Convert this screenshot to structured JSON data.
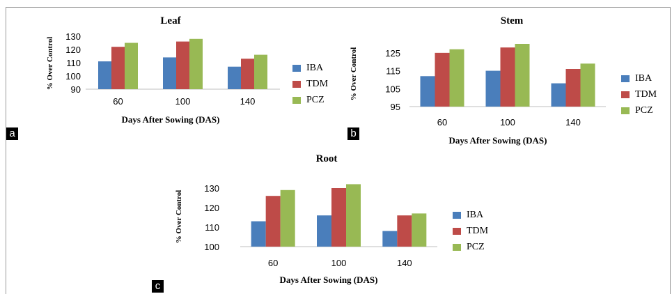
{
  "chart_data": [
    {
      "type": "bar",
      "title": "Leaf",
      "xlabel": "Days After Sowing (DAS)",
      "ylabel": "% Over Control",
      "categories": [
        "60",
        "100",
        "140"
      ],
      "ylim": [
        90,
        130
      ],
      "yticks": [
        90,
        100,
        110,
        120,
        130
      ],
      "legend_position": "right",
      "panel_label": "a",
      "series": [
        {
          "name": "IBA",
          "color": "#4a7ebb",
          "values": [
            111,
            114,
            107
          ]
        },
        {
          "name": "TDM",
          "color": "#be4b48",
          "values": [
            122,
            126,
            113
          ]
        },
        {
          "name": "PCZ",
          "color": "#98b954",
          "values": [
            125,
            128,
            116
          ]
        }
      ]
    },
    {
      "type": "bar",
      "title": "Stem",
      "xlabel": "Days After Sowing (DAS)",
      "ylabel": "% Over Control",
      "categories": [
        "60",
        "100",
        "140"
      ],
      "ylim": [
        95,
        130
      ],
      "yticks": [
        95,
        105,
        115,
        125
      ],
      "legend_position": "right",
      "panel_label": "b",
      "series": [
        {
          "name": "IBA",
          "color": "#4a7ebb",
          "values": [
            112,
            115,
            108
          ]
        },
        {
          "name": "TDM",
          "color": "#be4b48",
          "values": [
            125,
            128,
            116
          ]
        },
        {
          "name": "PCZ",
          "color": "#98b954",
          "values": [
            127,
            130,
            119
          ]
        }
      ]
    },
    {
      "type": "bar",
      "title": "Root",
      "xlabel": "Days After Sowing (DAS)",
      "ylabel": "% Over Control",
      "categories": [
        "60",
        "100",
        "140"
      ],
      "ylim": [
        100,
        135
      ],
      "yticks": [
        100,
        110,
        120,
        130
      ],
      "legend_position": "right",
      "panel_label": "c",
      "series": [
        {
          "name": "IBA",
          "color": "#4a7ebb",
          "values": [
            113,
            116,
            108
          ]
        },
        {
          "name": "TDM",
          "color": "#be4b48",
          "values": [
            126,
            130,
            116
          ]
        },
        {
          "name": "PCZ",
          "color": "#98b954",
          "values": [
            129,
            132,
            117
          ]
        }
      ]
    }
  ]
}
